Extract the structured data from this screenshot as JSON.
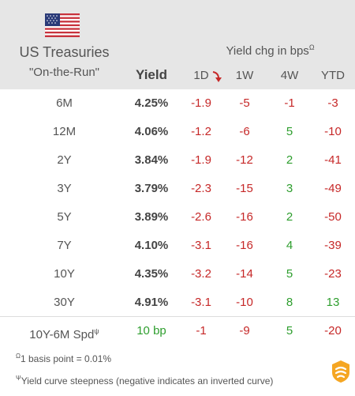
{
  "header": {
    "title_line1": "US Treasuries",
    "title_line2": "\"On-the-Run\"",
    "yield_header": "Yield",
    "chg_title": "Yield chg in bps",
    "chg_title_mark": "Ω",
    "columns": [
      "1D",
      "1W",
      "4W",
      "YTD"
    ],
    "flag_icon": "us-flag-icon",
    "sort_icon": "sort-down-arrow-icon"
  },
  "rows": [
    {
      "label": "6M",
      "yield": "4.25%",
      "d1": "-1.9",
      "w1": "-5",
      "w4": "-1",
      "ytd": "-3"
    },
    {
      "label": "12M",
      "yield": "4.06%",
      "d1": "-1.2",
      "w1": "-6",
      "w4": "5",
      "ytd": "-10"
    },
    {
      "label": "2Y",
      "yield": "3.84%",
      "d1": "-1.9",
      "w1": "-12",
      "w4": "2",
      "ytd": "-41"
    },
    {
      "label": "3Y",
      "yield": "3.79%",
      "d1": "-2.3",
      "w1": "-15",
      "w4": "3",
      "ytd": "-49"
    },
    {
      "label": "5Y",
      "yield": "3.89%",
      "d1": "-2.6",
      "w1": "-16",
      "w4": "2",
      "ytd": "-50"
    },
    {
      "label": "7Y",
      "yield": "4.10%",
      "d1": "-3.1",
      "w1": "-16",
      "w4": "4",
      "ytd": "-39"
    },
    {
      "label": "10Y",
      "yield": "4.35%",
      "d1": "-3.2",
      "w1": "-14",
      "w4": "5",
      "ytd": "-23"
    },
    {
      "label": "30Y",
      "yield": "4.91%",
      "d1": "-3.1",
      "w1": "-10",
      "w4": "8",
      "ytd": "13"
    }
  ],
  "spread": {
    "label": "10Y-6M Spd",
    "label_mark": "ψ",
    "value": "10 bp",
    "d1": "-1",
    "w1": "-9",
    "w4": "5",
    "ytd": "-20"
  },
  "footnotes": {
    "note1_mark": "Ω",
    "note1": "1 basis point = 0.01%",
    "note2_mark": "Ψ",
    "note2": "Yield curve steepness (negative indicates an inverted curve)"
  },
  "colors": {
    "negative": "#c62828",
    "positive": "#2e9e2e",
    "header_bg": "#e6e6e6",
    "logo": "#f5a623"
  },
  "logo_icon": "brand-logo-icon"
}
